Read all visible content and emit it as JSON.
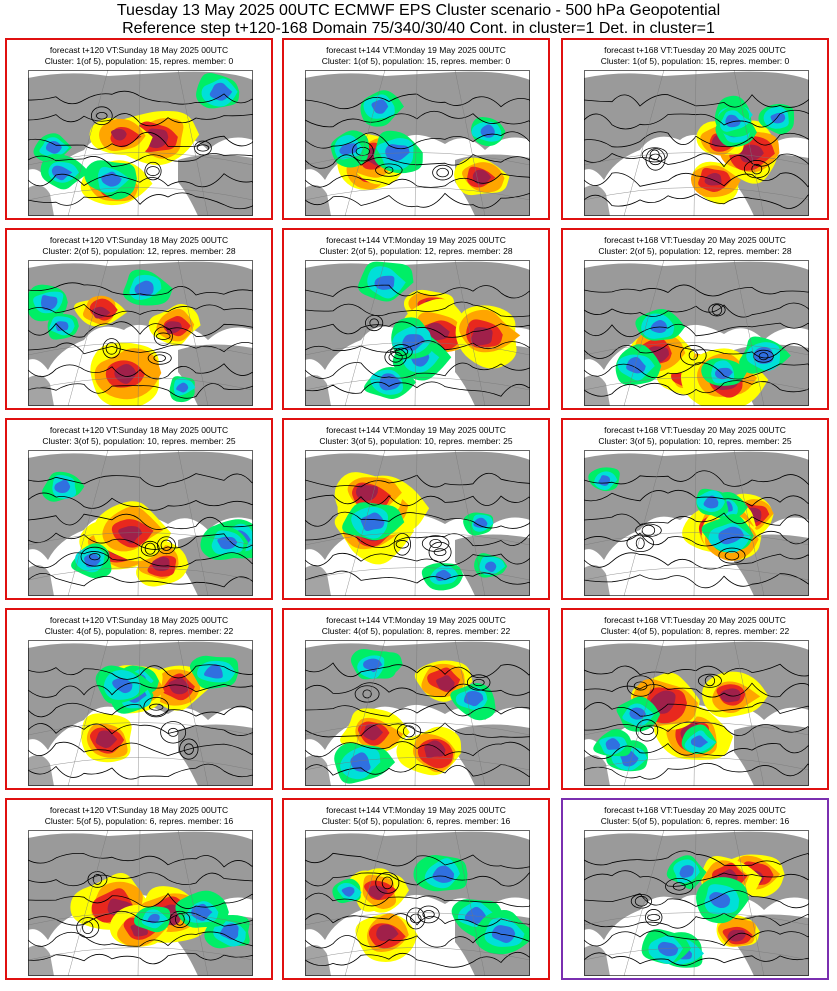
{
  "header": {
    "line1": "Tuesday 13 May 2025 00UTC ECMWF EPS Cluster scenario - 500 hPa Geopotential",
    "line2": "Reference step t+120-168 Domain 75/340/30/40 Cont. in cluster=1 Det. in cluster=1"
  },
  "colors": {
    "panel_border": "#e01010",
    "selected_border": "#7a2fb0",
    "land": "#9a9a9a",
    "ocean": "#ffffff",
    "pos_weak": "#ffff00",
    "pos_mid": "#ffa500",
    "pos_strong": "#e8281e",
    "pos_max": "#a0204a",
    "neg_weak": "#00ee66",
    "neg_mid": "#00e0d8",
    "neg_strong": "#3070e0"
  },
  "panels": [
    {
      "line1": "forecast t+120 VT:Sunday 18 May 2025 00UTC",
      "line2": "Cluster: 1(of 5), population: 15, repres. member: 0",
      "map_icon": "anomaly-map"
    },
    {
      "line1": "forecast t+144 VT:Monday 19 May 2025 00UTC",
      "line2": "Cluster: 1(of 5), population: 15, repres. member: 0",
      "map_icon": "anomaly-map"
    },
    {
      "line1": "forecast t+168 VT:Tuesday 20 May 2025 00UTC",
      "line2": "Cluster: 1(of 5), population: 15, repres. member: 0",
      "map_icon": "anomaly-map"
    },
    {
      "line1": "forecast t+120 VT:Sunday 18 May 2025 00UTC",
      "line2": "Cluster: 2(of 5), population: 12, repres. member: 28",
      "map_icon": "anomaly-map"
    },
    {
      "line1": "forecast t+144 VT:Monday 19 May 2025 00UTC",
      "line2": "Cluster: 2(of 5), population: 12, repres. member: 28",
      "map_icon": "anomaly-map"
    },
    {
      "line1": "forecast t+168 VT:Tuesday 20 May 2025 00UTC",
      "line2": "Cluster: 2(of 5), population: 12, repres. member: 28",
      "map_icon": "anomaly-map"
    },
    {
      "line1": "forecast t+120 VT:Sunday 18 May 2025 00UTC",
      "line2": "Cluster: 3(of 5), population: 10, repres. member: 25",
      "map_icon": "anomaly-map"
    },
    {
      "line1": "forecast t+144 VT:Monday 19 May 2025 00UTC",
      "line2": "Cluster: 3(of 5), population: 10, repres. member: 25",
      "map_icon": "anomaly-map"
    },
    {
      "line1": "forecast t+168 VT:Tuesday 20 May 2025 00UTC",
      "line2": "Cluster: 3(of 5), population: 10, repres. member: 25",
      "map_icon": "anomaly-map"
    },
    {
      "line1": "forecast t+120 VT:Sunday 18 May 2025 00UTC",
      "line2": "Cluster: 4(of 5), population: 8, repres. member: 22",
      "map_icon": "anomaly-map"
    },
    {
      "line1": "forecast t+144 VT:Monday 19 May 2025 00UTC",
      "line2": "Cluster: 4(of 5), population: 8, repres. member: 22",
      "map_icon": "anomaly-map"
    },
    {
      "line1": "forecast t+168 VT:Tuesday 20 May 2025 00UTC",
      "line2": "Cluster: 4(of 5), population: 8, repres. member: 22",
      "map_icon": "anomaly-map"
    },
    {
      "line1": "forecast t+120 VT:Sunday 18 May 2025 00UTC",
      "line2": "Cluster: 5(of 5), population: 6, repres. member: 16",
      "map_icon": "anomaly-map"
    },
    {
      "line1": "forecast t+144 VT:Monday 19 May 2025 00UTC",
      "line2": "Cluster: 5(of 5), population: 6, repres. member: 16",
      "map_icon": "anomaly-map"
    },
    {
      "line1": "forecast t+168 VT:Tuesday 20 May 2025 00UTC",
      "line2": "Cluster: 5(of 5), population: 6, repres. member: 16",
      "map_icon": "anomaly-map",
      "selected": true
    }
  ]
}
